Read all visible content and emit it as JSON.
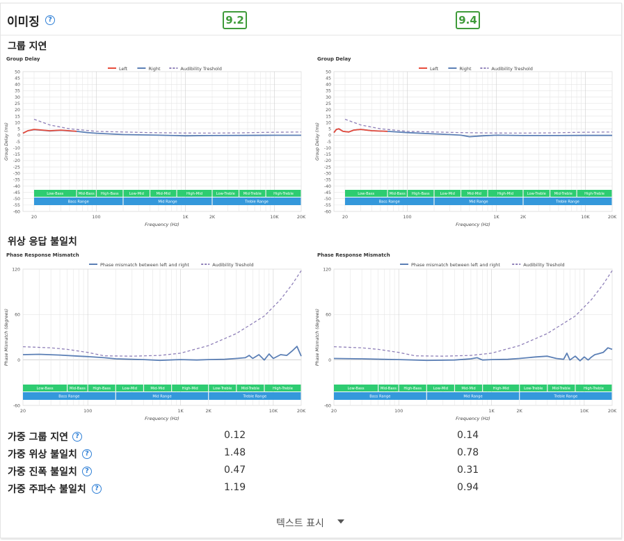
{
  "section": {
    "title": "이미징",
    "help_icon": "help-circle-icon"
  },
  "scores": {
    "left": "9.2",
    "right": "9.4",
    "color": "#3f9b3a"
  },
  "subsections": {
    "group_delay": "그룹 지연",
    "phase": "위상 응답 불일치"
  },
  "metrics": {
    "rows": [
      {
        "label": "가중 그룹 지연",
        "left": "0.12",
        "right": "0.14"
      },
      {
        "label": "가중 위상 불일치",
        "left": "1.48",
        "right": "0.78"
      },
      {
        "label": "가중 진폭 불일치",
        "left": "0.47",
        "right": "0.31"
      },
      {
        "label": "가중 주파수 불일치",
        "left": "1.19",
        "right": "0.94"
      }
    ]
  },
  "footer": {
    "show_text": "텍스트 표시",
    "caret_icon": "caret-down-icon"
  },
  "range_bands": {
    "top": [
      "Low-Bass",
      "Mid-Bass",
      "High-Bass",
      "Low-Mid",
      "Mid-Mid",
      "High-Mid",
      "Low-Treble",
      "Mid-Treble",
      "High-Treble"
    ],
    "top_edges_hz": [
      20,
      60,
      100,
      200,
      400,
      800,
      2000,
      4000,
      8000,
      20000
    ],
    "bottom": [
      "Bass Range",
      "Mid Range",
      "Treble Range"
    ],
    "bottom_edges_hz": [
      20,
      200,
      2000,
      20000
    ],
    "top_color": "#2ecc71",
    "bottom_color": "#3498db"
  },
  "chart_data": [
    {
      "type": "line",
      "title": "Group Delay",
      "xlabel": "Frequency (Hz)",
      "ylabel": "Group Delay (ms)",
      "xscale": "log",
      "xlim": [
        15,
        20000
      ],
      "ylim": [
        -60,
        50
      ],
      "x_ticks": [
        "20",
        "100",
        "1K",
        "2K",
        "10K",
        "20K"
      ],
      "x_tick_values": [
        20,
        100,
        1000,
        2000,
        10000,
        20000
      ],
      "y_ticks": [
        50,
        45,
        40,
        35,
        30,
        25,
        20,
        15,
        10,
        5,
        0,
        -5,
        -10,
        -15,
        -20,
        -25,
        -30,
        -35,
        -40,
        -45,
        -50,
        -55,
        -60
      ],
      "legend": [
        "Left",
        "Right",
        "Audibility Treshold"
      ],
      "legend_position": "top-center",
      "grid": true,
      "series": [
        {
          "name": "Left",
          "color": "#e74c3c",
          "x": [
            15,
            17,
            20,
            25,
            30,
            40,
            50,
            60
          ],
          "y": [
            1.5,
            3.5,
            4.5,
            4.0,
            3.5,
            4.0,
            3.5,
            3.0
          ]
        },
        {
          "name": "Right",
          "color": "#5b7fb5",
          "x": [
            15,
            17,
            20,
            25,
            30,
            40,
            50,
            60,
            80,
            100,
            200,
            500,
            1000,
            2000,
            5000,
            10000,
            20000
          ],
          "y": [
            1.5,
            3.5,
            4.3,
            3.8,
            3.3,
            3.8,
            3.3,
            3.0,
            2.0,
            1.5,
            0.5,
            0.0,
            -0.5,
            -0.3,
            -0.2,
            -0.1,
            -0.1
          ]
        },
        {
          "name": "Audibility Treshold",
          "color": "#8e7fb8",
          "dashed": true,
          "x": [
            20,
            30,
            50,
            100,
            200,
            400,
            1000,
            2000,
            4000,
            8000,
            20000
          ],
          "y": [
            12.5,
            8.0,
            5.0,
            3.0,
            2.5,
            2.0,
            1.7,
            1.6,
            1.8,
            2.2,
            2.5
          ]
        }
      ]
    },
    {
      "type": "line",
      "title": "Group Delay",
      "xlabel": "Frequency (Hz)",
      "ylabel": "Group Delay (ms)",
      "xscale": "log",
      "xlim": [
        15,
        20000
      ],
      "ylim": [
        -60,
        50
      ],
      "x_ticks": [
        "20",
        "100",
        "1K",
        "2K",
        "10K",
        "20K"
      ],
      "x_tick_values": [
        20,
        100,
        1000,
        2000,
        10000,
        20000
      ],
      "y_ticks": [
        50,
        45,
        40,
        35,
        30,
        25,
        20,
        15,
        10,
        5,
        0,
        -5,
        -10,
        -15,
        -20,
        -25,
        -30,
        -35,
        -40,
        -45,
        -50,
        -55,
        -60
      ],
      "legend": [
        "Left",
        "Right",
        "Audibility Treshold"
      ],
      "legend_position": "top-center",
      "grid": true,
      "series": [
        {
          "name": "Left",
          "color": "#e74c3c",
          "x": [
            15,
            16,
            17,
            19,
            22,
            25,
            30,
            40,
            60
          ],
          "y": [
            2.0,
            4.5,
            5.0,
            3.0,
            2.5,
            4.0,
            4.5,
            3.5,
            3.0
          ]
        },
        {
          "name": "Right",
          "color": "#5b7fb5",
          "x": [
            15,
            16,
            17,
            19,
            22,
            25,
            30,
            40,
            60,
            100,
            200,
            300,
            400,
            500,
            700,
            1000,
            2000,
            5000,
            10000,
            20000
          ],
          "y": [
            2.0,
            4.5,
            5.0,
            3.0,
            2.5,
            4.0,
            4.5,
            3.5,
            3.0,
            2.0,
            1.0,
            0.5,
            0.0,
            -1.2,
            -0.5,
            0.0,
            -0.3,
            -0.3,
            -0.2,
            -0.2
          ]
        },
        {
          "name": "Audibility Treshold",
          "color": "#8e7fb8",
          "dashed": true,
          "x": [
            20,
            30,
            50,
            100,
            200,
            400,
            1000,
            2000,
            4000,
            8000,
            20000
          ],
          "y": [
            12.5,
            8.0,
            5.0,
            3.0,
            2.5,
            2.0,
            1.7,
            1.6,
            1.8,
            2.2,
            2.5
          ]
        }
      ]
    },
    {
      "type": "line",
      "title": "Phase Response Mismatch",
      "xlabel": "Frequency (Hz)",
      "ylabel": "Phase Mismatch (degrees)",
      "xscale": "log",
      "xlim": [
        20,
        20000
      ],
      "ylim": [
        -60,
        120
      ],
      "x_ticks": [
        "20",
        "100",
        "1K",
        "2K",
        "10K",
        "20K"
      ],
      "x_tick_values": [
        20,
        100,
        1000,
        2000,
        10000,
        20000
      ],
      "y_ticks": [
        120,
        60,
        0,
        -60
      ],
      "legend": [
        "Phase mismatch between left and right",
        "Audibility Treshold"
      ],
      "legend_position": "top-center",
      "grid": true,
      "series": [
        {
          "name": "Phase mismatch between left and right",
          "color": "#5b7fb5",
          "x": [
            20,
            30,
            50,
            80,
            100,
            150,
            200,
            400,
            600,
            1000,
            1500,
            2000,
            3000,
            4000,
            5000,
            5500,
            6000,
            7000,
            8000,
            9000,
            10000,
            12000,
            14000,
            16000,
            18000,
            20000
          ],
          "y": [
            7,
            7.5,
            6.5,
            5,
            4.5,
            3,
            1.5,
            0.5,
            -0.5,
            0.5,
            0,
            0.5,
            1,
            2,
            3,
            6,
            2,
            7,
            0,
            8,
            2,
            7,
            6,
            12,
            18,
            5
          ]
        },
        {
          "name": "Audibility Treshold",
          "color": "#8e7fb8",
          "dashed": true,
          "x": [
            20,
            40,
            60,
            100,
            150,
            300,
            600,
            1000,
            2000,
            4000,
            8000,
            12000,
            16000,
            20000
          ],
          "y": [
            17.5,
            16,
            14,
            10,
            5.5,
            5,
            6,
            9,
            19,
            35,
            58,
            80,
            100,
            118
          ]
        }
      ]
    },
    {
      "type": "line",
      "title": "Phase Response Mismatch",
      "xlabel": "Frequency (Hz)",
      "ylabel": "Phase Mismatch (degrees)",
      "xscale": "log",
      "xlim": [
        20,
        20000
      ],
      "ylim": [
        -60,
        120
      ],
      "x_ticks": [
        "20",
        "100",
        "1K",
        "2K",
        "10K",
        "20K"
      ],
      "x_tick_values": [
        20,
        100,
        1000,
        2000,
        10000,
        20000
      ],
      "y_ticks": [
        120,
        60,
        0,
        -60
      ],
      "legend": [
        "Phase mismatch between left and right",
        "Audibility Treshold"
      ],
      "legend_position": "top-center",
      "grid": true,
      "series": [
        {
          "name": "Phase mismatch between left and right",
          "color": "#5b7fb5",
          "x": [
            20,
            40,
            100,
            200,
            400,
            600,
            700,
            800,
            1000,
            1500,
            2000,
            3000,
            4000,
            5000,
            6000,
            6500,
            7000,
            8000,
            9000,
            10000,
            11000,
            12000,
            13000,
            14000,
            16000,
            18000,
            20000
          ],
          "y": [
            2,
            1.5,
            0.5,
            -0.5,
            0,
            1.5,
            3,
            0,
            0.5,
            1,
            2,
            4,
            5,
            2,
            1,
            9,
            0,
            5,
            -1,
            4,
            0,
            4,
            7,
            8,
            10,
            16,
            14
          ]
        },
        {
          "name": "Audibility Treshold",
          "color": "#8e7fb8",
          "dashed": true,
          "x": [
            20,
            40,
            60,
            100,
            150,
            300,
            600,
            1000,
            2000,
            4000,
            8000,
            12000,
            16000,
            20000
          ],
          "y": [
            17.5,
            16,
            14,
            10,
            5.5,
            5,
            6,
            9,
            19,
            35,
            58,
            80,
            100,
            118
          ]
        }
      ]
    }
  ]
}
